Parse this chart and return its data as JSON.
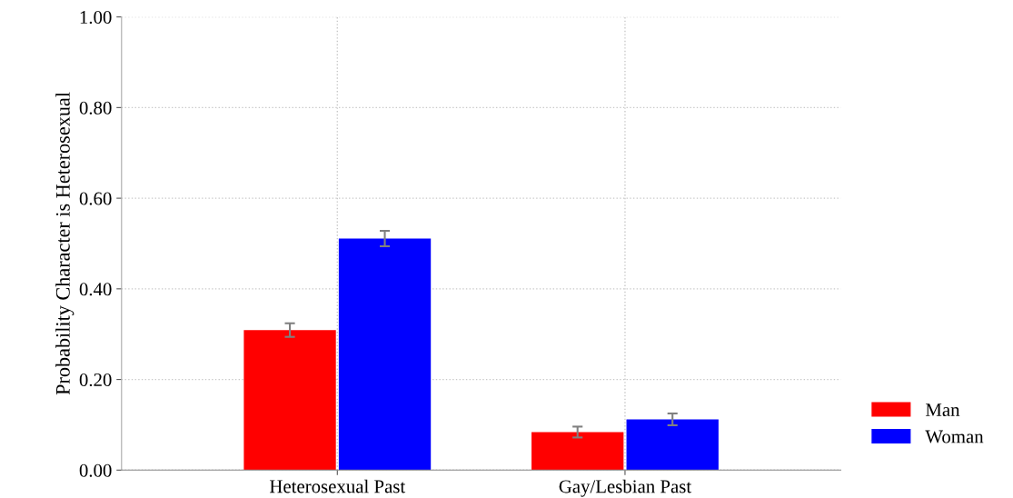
{
  "chart_data": {
    "type": "bar",
    "ylabel": "Probability Character is Heterosexual",
    "categories": [
      "Heterosexual Past",
      "Gay/Lesbian Past"
    ],
    "series": [
      {
        "name": "Man",
        "color": "#ff0000",
        "values": [
          0.309,
          0.084
        ],
        "errors": [
          0.015,
          0.012
        ]
      },
      {
        "name": "Woman",
        "color": "#0000ff",
        "values": [
          0.511,
          0.112
        ],
        "errors": [
          0.017,
          0.013
        ]
      }
    ],
    "ylim": [
      0,
      1
    ],
    "yticks": [
      {
        "value": 0,
        "label": "0.00"
      },
      {
        "value": 0.2,
        "label": "0.20"
      },
      {
        "value": 0.4,
        "label": "0.40"
      },
      {
        "value": 0.6,
        "label": "0.60"
      },
      {
        "value": 0.8,
        "label": "0.80"
      },
      {
        "value": 1,
        "label": "1.00"
      }
    ],
    "grid": true,
    "legend": "right"
  }
}
